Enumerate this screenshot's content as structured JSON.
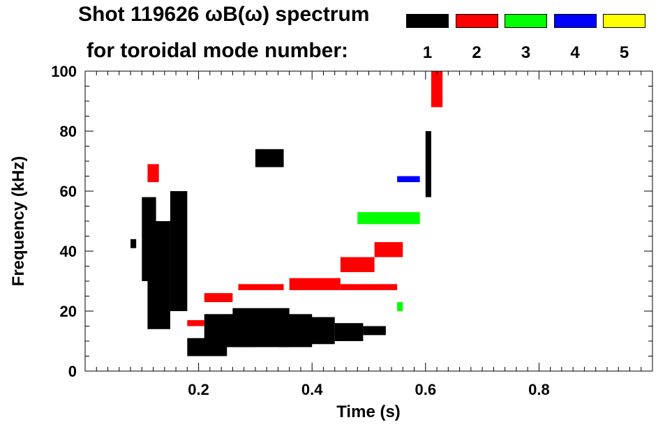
{
  "chart_data": {
    "type": "heatmap",
    "title_line1": "Shot 119626 ωB(ω) spectrum",
    "title_line2": "for toroidal mode number:",
    "xlabel": "Time (s)",
    "ylabel": "Frequency (kHz)",
    "xlim": [
      0.0,
      1.0
    ],
    "ylim": [
      0,
      100
    ],
    "xticks": [
      0.2,
      0.4,
      0.6,
      0.8
    ],
    "xtick_labels": [
      "0.2",
      "0.4",
      "0.6",
      "0.8"
    ],
    "yticks": [
      0,
      20,
      40,
      60,
      80,
      100
    ],
    "ytick_labels": [
      "0",
      "20",
      "40",
      "60",
      "80",
      "100"
    ],
    "legend": [
      {
        "label": "1",
        "color": "#000000"
      },
      {
        "label": "2",
        "color": "#ff0000"
      },
      {
        "label": "3",
        "color": "#00ff00"
      },
      {
        "label": "4",
        "color": "#0000ff"
      },
      {
        "label": "5",
        "color": "#ffff00"
      }
    ],
    "series": [
      {
        "name": "n=1",
        "color": "#000000",
        "bands": [
          {
            "t0": 0.08,
            "t1": 0.09,
            "f0": 41,
            "f1": 44
          },
          {
            "t0": 0.1,
            "t1": 0.125,
            "f0": 30,
            "f1": 58
          },
          {
            "t0": 0.11,
            "t1": 0.15,
            "f0": 14,
            "f1": 50
          },
          {
            "t0": 0.15,
            "t1": 0.18,
            "f0": 20,
            "f1": 60
          },
          {
            "t0": 0.18,
            "t1": 0.25,
            "f0": 5,
            "f1": 11
          },
          {
            "t0": 0.21,
            "t1": 0.3,
            "f0": 8,
            "f1": 19
          },
          {
            "t0": 0.26,
            "t1": 0.36,
            "f0": 8,
            "f1": 21
          },
          {
            "t0": 0.34,
            "t1": 0.4,
            "f0": 8,
            "f1": 19
          },
          {
            "t0": 0.39,
            "t1": 0.44,
            "f0": 9,
            "f1": 18
          },
          {
            "t0": 0.44,
            "t1": 0.49,
            "f0": 10,
            "f1": 16
          },
          {
            "t0": 0.49,
            "t1": 0.53,
            "f0": 12,
            "f1": 15
          },
          {
            "t0": 0.3,
            "t1": 0.35,
            "f0": 68,
            "f1": 74
          },
          {
            "t0": 0.6,
            "t1": 0.61,
            "f0": 58,
            "f1": 80
          }
        ]
      },
      {
        "name": "n=2",
        "color": "#ff0000",
        "bands": [
          {
            "t0": 0.11,
            "t1": 0.13,
            "f0": 63,
            "f1": 69
          },
          {
            "t0": 0.18,
            "t1": 0.21,
            "f0": 15,
            "f1": 17
          },
          {
            "t0": 0.21,
            "t1": 0.26,
            "f0": 23,
            "f1": 26
          },
          {
            "t0": 0.27,
            "t1": 0.35,
            "f0": 27,
            "f1": 29
          },
          {
            "t0": 0.36,
            "t1": 0.45,
            "f0": 27,
            "f1": 31
          },
          {
            "t0": 0.45,
            "t1": 0.55,
            "f0": 27,
            "f1": 29
          },
          {
            "t0": 0.45,
            "t1": 0.51,
            "f0": 33,
            "f1": 38
          },
          {
            "t0": 0.51,
            "t1": 0.56,
            "f0": 38,
            "f1": 43
          },
          {
            "t0": 0.61,
            "t1": 0.63,
            "f0": 88,
            "f1": 100
          }
        ]
      },
      {
        "name": "n=3",
        "color": "#00ff00",
        "bands": [
          {
            "t0": 0.48,
            "t1": 0.59,
            "f0": 49,
            "f1": 53
          },
          {
            "t0": 0.55,
            "t1": 0.56,
            "f0": 20,
            "f1": 23
          }
        ]
      },
      {
        "name": "n=4",
        "color": "#0000ff",
        "bands": [
          {
            "t0": 0.55,
            "t1": 0.59,
            "f0": 63,
            "f1": 65
          }
        ]
      },
      {
        "name": "n=5",
        "color": "#ffff00",
        "bands": []
      }
    ]
  }
}
